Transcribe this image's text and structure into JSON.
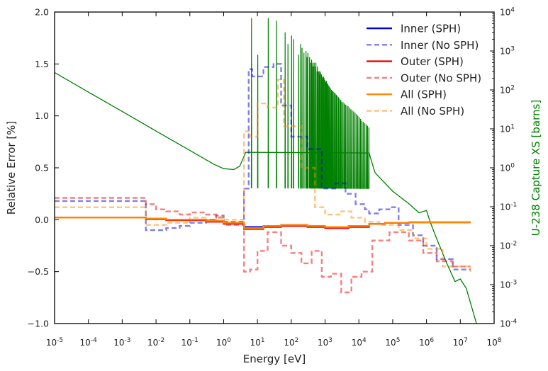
{
  "chart_data": {
    "type": "line",
    "xlabel": "Energy [eV]",
    "ylabel": "Relative Error [%]",
    "y2label": "U-238 Capture XS [barns]",
    "xscale": "log",
    "xlim": [
      1e-05,
      100000000.0
    ],
    "ylim": [
      -1.0,
      2.0
    ],
    "y2scale": "log",
    "y2lim": [
      0.0001,
      10000.0
    ],
    "legend_position": "top-right",
    "x_ticks": [
      {
        "value": 1e-05,
        "base": "10",
        "exp": "-5"
      },
      {
        "value": 0.0001,
        "base": "10",
        "exp": "-4"
      },
      {
        "value": 0.001,
        "base": "10",
        "exp": "-3"
      },
      {
        "value": 0.01,
        "base": "10",
        "exp": "-2"
      },
      {
        "value": 0.1,
        "base": "10",
        "exp": "-1"
      },
      {
        "value": 1.0,
        "base": "10",
        "exp": "0"
      },
      {
        "value": 10.0,
        "base": "10",
        "exp": "1"
      },
      {
        "value": 100.0,
        "base": "10",
        "exp": "2"
      },
      {
        "value": 1000.0,
        "base": "10",
        "exp": "3"
      },
      {
        "value": 10000.0,
        "base": "10",
        "exp": "4"
      },
      {
        "value": 100000.0,
        "base": "10",
        "exp": "5"
      },
      {
        "value": 1000000.0,
        "base": "10",
        "exp": "6"
      },
      {
        "value": 10000000.0,
        "base": "10",
        "exp": "7"
      },
      {
        "value": 100000000.0,
        "base": "10",
        "exp": "8"
      }
    ],
    "y_ticks": [
      {
        "value": 2.0,
        "label": "2.0"
      },
      {
        "value": 1.5,
        "label": "1.5"
      },
      {
        "value": 1.0,
        "label": "1.0"
      },
      {
        "value": 0.5,
        "label": "0.5"
      },
      {
        "value": 0.0,
        "label": "0.0"
      },
      {
        "value": -0.5,
        "label": "−0.5"
      },
      {
        "value": -1.0,
        "label": "−1.0"
      }
    ],
    "y2_ticks": [
      {
        "value": 10000.0,
        "base": "10",
        "exp": "4"
      },
      {
        "value": 1000.0,
        "base": "10",
        "exp": "3"
      },
      {
        "value": 100.0,
        "base": "10",
        "exp": "2"
      },
      {
        "value": 10.0,
        "base": "10",
        "exp": "1"
      },
      {
        "value": 1.0,
        "base": "10",
        "exp": "0"
      },
      {
        "value": 0.1,
        "base": "10",
        "exp": "-1"
      },
      {
        "value": 0.01,
        "base": "10",
        "exp": "-2"
      },
      {
        "value": 0.001,
        "base": "10",
        "exp": "-3"
      },
      {
        "value": 0.0001,
        "base": "10",
        "exp": "-4"
      }
    ],
    "series": [
      {
        "name": "Inner (SPH)",
        "color": "#0000dd",
        "dash": "solid",
        "opacity": 1.0,
        "steps": [
          [
            1e-05,
            0.02
          ],
          [
            0.005,
            0.01
          ],
          [
            0.02,
            0.0
          ],
          [
            0.3,
            -0.01
          ],
          [
            1.0,
            -0.03
          ],
          [
            4.0,
            -0.07
          ],
          [
            15,
            -0.06
          ],
          [
            50,
            -0.05
          ],
          [
            300,
            -0.06
          ],
          [
            1000,
            -0.07
          ],
          [
            5000,
            -0.06
          ],
          [
            20000,
            -0.04
          ],
          [
            60000,
            -0.03
          ],
          [
            300000,
            -0.025
          ],
          [
            1000000.0,
            -0.025
          ],
          [
            20000000.0,
            -0.025
          ]
        ]
      },
      {
        "name": "Inner (No SPH)",
        "color": "#0000dd",
        "dash": "dashed",
        "opacity": 0.5,
        "steps": [
          [
            1e-05,
            0.18
          ],
          [
            0.005,
            -0.1
          ],
          [
            0.02,
            -0.08
          ],
          [
            0.05,
            -0.06
          ],
          [
            0.1,
            -0.03
          ],
          [
            0.3,
            0.0
          ],
          [
            0.6,
            0.04
          ],
          [
            1.0,
            -0.02
          ],
          [
            4.0,
            0.3
          ],
          [
            5.5,
            1.45
          ],
          [
            7.0,
            1.38
          ],
          [
            15,
            1.47
          ],
          [
            30,
            1.5
          ],
          [
            50,
            1.1
          ],
          [
            100,
            0.8
          ],
          [
            300,
            0.68
          ],
          [
            800,
            0.3
          ],
          [
            2000,
            0.35
          ],
          [
            4000,
            0.25
          ],
          [
            8000,
            0.15
          ],
          [
            15000,
            0.1
          ],
          [
            20000,
            0.06
          ],
          [
            40000,
            0.1
          ],
          [
            80000,
            0.12
          ],
          [
            150000,
            -0.05
          ],
          [
            400000,
            -0.15
          ],
          [
            800000,
            -0.25
          ],
          [
            2000000.0,
            -0.38
          ],
          [
            6000000.0,
            -0.48
          ],
          [
            20000000.0,
            -0.48
          ]
        ]
      },
      {
        "name": "Outer (SPH)",
        "color": "#ee0000",
        "dash": "solid",
        "opacity": 1.0,
        "steps": [
          [
            1e-05,
            0.02
          ],
          [
            0.005,
            0.005
          ],
          [
            0.02,
            -0.005
          ],
          [
            0.3,
            -0.02
          ],
          [
            1.0,
            -0.04
          ],
          [
            4.0,
            -0.09
          ],
          [
            15,
            -0.07
          ],
          [
            50,
            -0.06
          ],
          [
            300,
            -0.07
          ],
          [
            1000,
            -0.08
          ],
          [
            5000,
            -0.07
          ],
          [
            20000,
            -0.04
          ],
          [
            60000,
            -0.03
          ],
          [
            300000,
            -0.025
          ],
          [
            1000000.0,
            -0.025
          ],
          [
            20000000.0,
            -0.025
          ]
        ]
      },
      {
        "name": "Outer (No SPH)",
        "color": "#ee0000",
        "dash": "dashed",
        "opacity": 0.5,
        "steps": [
          [
            1e-05,
            0.21
          ],
          [
            0.005,
            0.15
          ],
          [
            0.01,
            0.1
          ],
          [
            0.02,
            0.08
          ],
          [
            0.05,
            0.05
          ],
          [
            0.1,
            0.07
          ],
          [
            0.3,
            0.05
          ],
          [
            0.6,
            0.02
          ],
          [
            1.0,
            -0.05
          ],
          [
            4.0,
            -0.5
          ],
          [
            6.0,
            -0.48
          ],
          [
            10,
            -0.3
          ],
          [
            20,
            -0.12
          ],
          [
            50,
            -0.25
          ],
          [
            100,
            -0.32
          ],
          [
            200,
            -0.42
          ],
          [
            400,
            -0.3
          ],
          [
            800,
            -0.55
          ],
          [
            1500,
            -0.52
          ],
          [
            3000,
            -0.7
          ],
          [
            6000,
            -0.55
          ],
          [
            12000,
            -0.5
          ],
          [
            25000,
            -0.2
          ],
          [
            80000,
            -0.12
          ],
          [
            300000,
            -0.2
          ],
          [
            800000,
            -0.32
          ],
          [
            2000000.0,
            -0.4
          ],
          [
            6000000.0,
            -0.45
          ],
          [
            20000000.0,
            -0.45
          ]
        ]
      },
      {
        "name": "All (SPH)",
        "color": "#ff8800",
        "dash": "solid",
        "opacity": 1.0,
        "steps": [
          [
            1e-05,
            0.02
          ],
          [
            0.005,
            0.01
          ],
          [
            0.02,
            0.0
          ],
          [
            0.3,
            -0.01
          ],
          [
            1.0,
            -0.03
          ],
          [
            4.0,
            -0.08
          ],
          [
            15,
            -0.06
          ],
          [
            50,
            -0.05
          ],
          [
            300,
            -0.06
          ],
          [
            1000,
            -0.07
          ],
          [
            5000,
            -0.06
          ],
          [
            20000,
            -0.04
          ],
          [
            60000,
            -0.03
          ],
          [
            300000,
            -0.025
          ],
          [
            1000000.0,
            -0.025
          ],
          [
            20000000.0,
            -0.025
          ]
        ]
      },
      {
        "name": "All (No SPH)",
        "color": "#ff8800",
        "dash": "dashed",
        "opacity": 0.5,
        "steps": [
          [
            1e-05,
            0.12
          ],
          [
            0.005,
            -0.05
          ],
          [
            0.02,
            -0.03
          ],
          [
            0.1,
            0.02
          ],
          [
            0.3,
            0.0
          ],
          [
            0.6,
            0.03
          ],
          [
            1.0,
            0.0
          ],
          [
            4.0,
            0.85
          ],
          [
            6.0,
            0.8
          ],
          [
            10,
            1.12
          ],
          [
            20,
            1.08
          ],
          [
            40,
            1.35
          ],
          [
            60,
            0.9
          ],
          [
            200,
            0.5
          ],
          [
            500,
            0.12
          ],
          [
            1000,
            0.05
          ],
          [
            3000,
            0.08
          ],
          [
            6000,
            0.02
          ],
          [
            15000,
            -0.02
          ],
          [
            40000,
            -0.05
          ],
          [
            150000,
            -0.1
          ],
          [
            400000,
            -0.18
          ],
          [
            1000000.0,
            -0.28
          ],
          [
            3000000.0,
            -0.45
          ],
          [
            20000000.0,
            -0.5
          ]
        ]
      }
    ],
    "xs_curve": {
      "name": "U-238 Capture XS",
      "color": "#008000",
      "smooth": [
        [
          1e-05,
          280
        ],
        [
          0.0001,
          88
        ],
        [
          0.001,
          28
        ],
        [
          0.01,
          8.8
        ],
        [
          0.1,
          2.8
        ],
        [
          0.5,
          1.25
        ],
        [
          1.0,
          0.95
        ],
        [
          2.0,
          0.9
        ],
        [
          3.0,
          1.1
        ],
        [
          4.5,
          2.5
        ],
        [
          20000,
          2.4
        ],
        [
          30000,
          0.75
        ],
        [
          100000,
          0.25
        ],
        [
          300000,
          0.12
        ],
        [
          600000,
          0.07
        ],
        [
          1000000.0,
          0.08
        ],
        [
          1300000.0,
          0.04
        ],
        [
          2000000.0,
          0.015
        ],
        [
          4000000.0,
          0.0035
        ],
        [
          7000000.0,
          0.0012
        ],
        [
          10000000.0,
          0.0014
        ],
        [
          15000000.0,
          0.0008
        ],
        [
          30000000.0,
          0.0001
        ]
      ],
      "peaks": [
        [
          6.67,
          7000
        ],
        [
          10.2,
          800
        ],
        [
          20.9,
          7000
        ],
        [
          36.7,
          6000
        ],
        [
          66,
          3000
        ],
        [
          80,
          1500
        ],
        [
          102,
          2500
        ],
        [
          117,
          2000
        ],
        [
          165,
          800
        ],
        [
          190,
          1500
        ],
        [
          208,
          1200
        ],
        [
          237,
          900
        ],
        [
          273,
          1000
        ],
        [
          291,
          700
        ],
        [
          311,
          900
        ],
        [
          348,
          700
        ],
        [
          376,
          500
        ],
        [
          398,
          600
        ],
        [
          410,
          400
        ],
        [
          434,
          500
        ],
        [
          463,
          400
        ],
        [
          478,
          500
        ],
        [
          518,
          400
        ],
        [
          535,
          500
        ],
        [
          580,
          300
        ],
        [
          595,
          400
        ],
        [
          622,
          300
        ],
        [
          661,
          300
        ],
        [
          694,
          250
        ],
        [
          710,
          300
        ],
        [
          721,
          250
        ],
        [
          730,
          280
        ],
        [
          780,
          250
        ],
        [
          820,
          220
        ],
        [
          850,
          200
        ],
        [
          900,
          220
        ],
        [
          937,
          200
        ],
        [
          990,
          180
        ],
        [
          1050,
          160
        ],
        [
          1100,
          170
        ],
        [
          1150,
          150
        ],
        [
          1200,
          140
        ],
        [
          1280,
          130
        ],
        [
          1350,
          120
        ],
        [
          1450,
          110
        ],
        [
          1550,
          100
        ],
        [
          1650,
          95
        ],
        [
          1750,
          90
        ],
        [
          1900,
          85
        ],
        [
          2000,
          80
        ],
        [
          2150,
          75
        ],
        [
          2300,
          70
        ],
        [
          2500,
          65
        ],
        [
          2700,
          60
        ],
        [
          2900,
          55
        ],
        [
          3100,
          50
        ],
        [
          3400,
          48
        ],
        [
          3700,
          45
        ],
        [
          4000,
          42
        ],
        [
          4400,
          40
        ],
        [
          4800,
          38
        ],
        [
          5300,
          35
        ],
        [
          5800,
          32
        ],
        [
          6300,
          30
        ],
        [
          7000,
          28
        ],
        [
          7700,
          26
        ],
        [
          8500,
          24
        ],
        [
          9300,
          22
        ],
        [
          10200,
          20
        ],
        [
          11200,
          18
        ],
        [
          12300,
          16
        ],
        [
          13500,
          15
        ],
        [
          15000,
          14
        ],
        [
          16500,
          13
        ],
        [
          18000,
          12
        ],
        [
          19800,
          11
        ]
      ]
    }
  }
}
